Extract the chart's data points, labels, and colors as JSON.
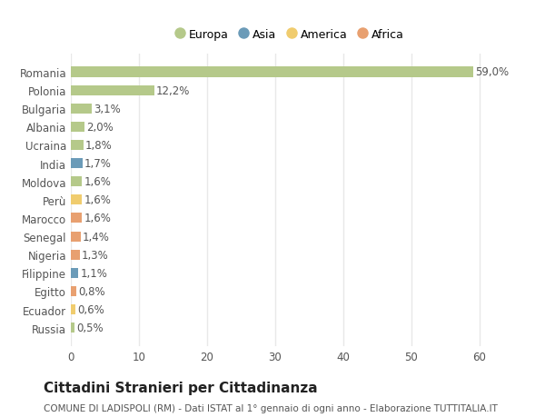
{
  "countries": [
    "Romania",
    "Polonia",
    "Bulgaria",
    "Albania",
    "Ucraina",
    "India",
    "Moldova",
    "Perù",
    "Marocco",
    "Senegal",
    "Nigeria",
    "Filippine",
    "Egitto",
    "Ecuador",
    "Russia"
  ],
  "values": [
    59.0,
    12.2,
    3.1,
    2.0,
    1.8,
    1.7,
    1.6,
    1.6,
    1.6,
    1.4,
    1.3,
    1.1,
    0.8,
    0.6,
    0.5
  ],
  "labels": [
    "59,0%",
    "12,2%",
    "3,1%",
    "2,0%",
    "1,8%",
    "1,7%",
    "1,6%",
    "1,6%",
    "1,6%",
    "1,4%",
    "1,3%",
    "1,1%",
    "0,8%",
    "0,6%",
    "0,5%"
  ],
  "continents": [
    "Europa",
    "Europa",
    "Europa",
    "Europa",
    "Europa",
    "Asia",
    "Europa",
    "America",
    "Africa",
    "Africa",
    "Africa",
    "Asia",
    "Africa",
    "America",
    "Europa"
  ],
  "continent_colors": {
    "Europa": "#b5c98a",
    "Asia": "#6b9bb8",
    "America": "#f0cc6e",
    "Africa": "#e8a070"
  },
  "legend_order": [
    "Europa",
    "Asia",
    "America",
    "Africa"
  ],
  "xlim": [
    0,
    64
  ],
  "xticks": [
    0,
    10,
    20,
    30,
    40,
    50,
    60
  ],
  "background_color": "#ffffff",
  "grid_color": "#e8e8e8",
  "title": "Cittadini Stranieri per Cittadinanza",
  "subtitle": "COMUNE DI LADISPOLI (RM) - Dati ISTAT al 1° gennaio di ogni anno - Elaborazione TUTTITALIA.IT",
  "bar_height": 0.55,
  "label_fontsize": 8.5,
  "tick_fontsize": 8.5,
  "title_fontsize": 11,
  "subtitle_fontsize": 7.5
}
